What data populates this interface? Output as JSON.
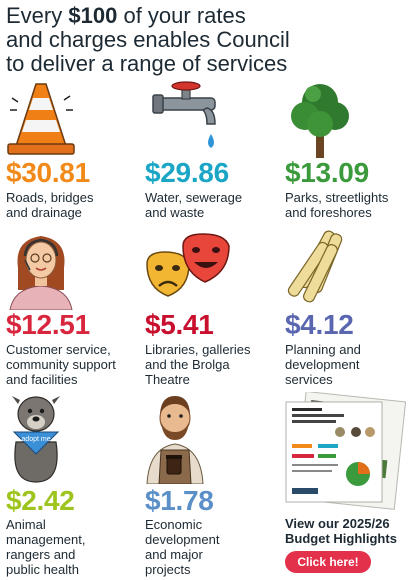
{
  "headline": {
    "prefix": "Every",
    "amount": "$100",
    "rest_line1": "of your rates",
    "line2": "and charges enables Council",
    "line3": "to deliver a range of services"
  },
  "services": [
    {
      "amount": "$30.81",
      "color": "#f28a1a",
      "icon": "traffic-cone-icon",
      "desc": [
        "Roads, bridges",
        "and drainage"
      ]
    },
    {
      "amount": "$29.86",
      "color": "#1aa6c4",
      "icon": "water-tap-icon",
      "desc": [
        "Water, sewerage",
        "and waste"
      ]
    },
    {
      "amount": "$13.09",
      "color": "#3a9a3c",
      "icon": "tree-icon",
      "desc": [
        "Parks, streetlights",
        "and foreshores"
      ]
    },
    {
      "amount": "$12.51",
      "color": "#d8263f",
      "icon": "customer-service-icon",
      "desc": [
        "Customer service,",
        "community support",
        "and facilities"
      ]
    },
    {
      "amount": "$5.41",
      "color": "#c8102e",
      "icon": "theatre-masks-icon",
      "desc": [
        "Libraries, galleries",
        "and the Brolga",
        "Theatre"
      ]
    },
    {
      "amount": "$4.12",
      "color": "#5a67b0",
      "icon": "planning-scrolls-icon",
      "desc": [
        "Planning and",
        "development",
        "services"
      ]
    },
    {
      "amount": "$2.42",
      "color": "#9ec41e",
      "icon": "dog-icon",
      "desc": [
        "Animal",
        "management,",
        "rangers and",
        "public health"
      ]
    },
    {
      "amount": "$1.78",
      "color": "#5b8fc7",
      "icon": "barista-icon",
      "desc": [
        "Economic",
        "development",
        "and major",
        "projects"
      ]
    }
  ],
  "dog_bandana_text": "adopt me",
  "promo": {
    "title_line1": "View our 2025/26",
    "title_line2": "Budget Highlights",
    "button_label": "Click here!",
    "button_color": "#e4314b"
  }
}
